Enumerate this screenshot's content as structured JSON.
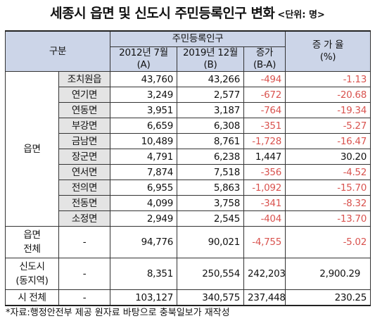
{
  "title": "세종시 읍면 및 신도시 주민등록인구 변화",
  "unit": "<단위: 명>",
  "header": {
    "category": "구분",
    "population_group": "주민등록인구",
    "col_2012_line1": "2012년 7월",
    "col_2012_line2": "(A)",
    "col_2019_line1": "2019년 12월",
    "col_2019_line2": "(B)",
    "col_change_line1": "증가",
    "col_change_line2": "(B-A)",
    "rate_line1": "증 가 율",
    "rate_line2": "(%)"
  },
  "group_eupmyeon": "읍면",
  "rows": [
    {
      "name": "조치원읍",
      "a": "43,760",
      "b": "43,266",
      "change": "-494",
      "rate": "-1.13"
    },
    {
      "name": "연기면",
      "a": "3,249",
      "b": "2,577",
      "change": "-672",
      "rate": "-20.68"
    },
    {
      "name": "연동면",
      "a": "3,951",
      "b": "3,187",
      "change": "-764",
      "rate": "-19.34"
    },
    {
      "name": "부강면",
      "a": "6,659",
      "b": "6,308",
      "change": "-351",
      "rate": "-5.27"
    },
    {
      "name": "금남면",
      "a": "10,489",
      "b": "8,761",
      "change": "-1,728",
      "rate": "-16.47"
    },
    {
      "name": "장군면",
      "a": "4,791",
      "b": "6,238",
      "change": "1,447",
      "rate": "30.20"
    },
    {
      "name": "연서면",
      "a": "7,874",
      "b": "7,518",
      "change": "-356",
      "rate": "-4.52"
    },
    {
      "name": "전의면",
      "a": "6,955",
      "b": "5,863",
      "change": "-1,092",
      "rate": "-15.70"
    },
    {
      "name": "전동면",
      "a": "4,099",
      "b": "3,758",
      "change": "-341",
      "rate": "-8.32"
    },
    {
      "name": "소정면",
      "a": "2,949",
      "b": "2,545",
      "change": "-404",
      "rate": "-13.70"
    }
  ],
  "total_eupmyeon": {
    "label_line1": "읍면",
    "label_line2": "전체",
    "sub": "-",
    "a": "94,776",
    "b": "90,021",
    "change": "-4,755",
    "rate": "-5.02"
  },
  "new_city": {
    "label_line1": "신도시",
    "label_line2": "(동지역)",
    "sub": "-",
    "a": "8,351",
    "b": "250,554",
    "change": "242,203",
    "rate": "2,900.29"
  },
  "city_total": {
    "label": "시 전체",
    "sub": "-",
    "a": "103,127",
    "b": "340,575",
    "change": "237,448",
    "rate": "230.25"
  },
  "footnote": "*자료:행정안전부 제공 원자료 바탕으로 충북일보가 재작성",
  "colors": {
    "header_bg": "#ccd5e8",
    "label_bg": "#e4e4e4",
    "negative": "#d9534f"
  }
}
